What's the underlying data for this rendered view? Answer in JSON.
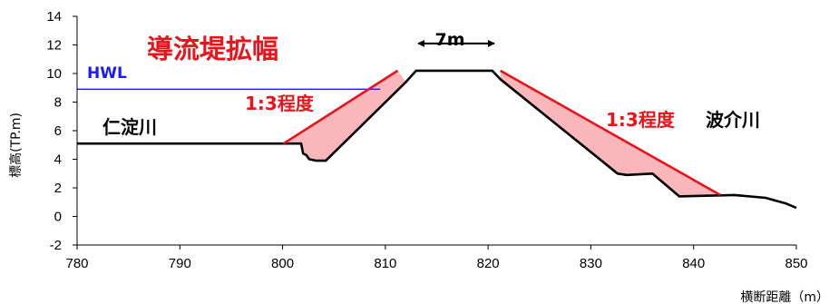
{
  "chart_data": {
    "type": "line",
    "title": "",
    "xlabel": "横断距離（m）",
    "ylabel": "標高(TP.m)",
    "xlim": [
      780,
      850
    ],
    "ylim": [
      -2,
      14
    ],
    "x_ticks": [
      780,
      790,
      800,
      810,
      820,
      830,
      840,
      850
    ],
    "y_ticks": [
      -2,
      0,
      2,
      4,
      6,
      8,
      10,
      12,
      14
    ],
    "grid": false,
    "series": [
      {
        "name": "",
        "color": "#000000",
        "points": [
          [
            780,
            5.1
          ],
          [
            801.8,
            5.1
          ],
          [
            802.0,
            4.4
          ],
          [
            802.3,
            4.3
          ],
          [
            802.6,
            4.0
          ],
          [
            803.3,
            3.9
          ],
          [
            804.2,
            3.9
          ],
          [
            812.0,
            9.4
          ],
          [
            813.0,
            10.2
          ],
          [
            820.4,
            10.2
          ],
          [
            821.2,
            9.6
          ],
          [
            832.6,
            3.0
          ],
          [
            833.5,
            2.9
          ],
          [
            836.0,
            3.0
          ],
          [
            838.6,
            1.4
          ],
          [
            844.0,
            1.5
          ],
          [
            847.0,
            1.3
          ],
          [
            849.0,
            0.9
          ],
          [
            850,
            0.6
          ]
        ]
      }
    ],
    "hwl": {
      "y": 8.9,
      "x_range": [
        780,
        809.5
      ],
      "color": "#1a1aff"
    },
    "widening_regions": [
      {
        "polygon": [
          [
            800.1,
            5.1
          ],
          [
            801.8,
            5.1
          ],
          [
            802.0,
            4.4
          ],
          [
            802.3,
            4.3
          ],
          [
            802.6,
            4.0
          ],
          [
            803.3,
            3.9
          ],
          [
            804.2,
            3.9
          ],
          [
            812.0,
            9.4
          ],
          [
            811.2,
            10.2
          ]
        ],
        "slope_line": [
          [
            800.1,
            5.1
          ],
          [
            811.2,
            10.2
          ]
        ]
      },
      {
        "polygon": [
          [
            821.2,
            10.2
          ],
          [
            821.2,
            9.6
          ],
          [
            832.6,
            3.0
          ],
          [
            833.5,
            2.9
          ],
          [
            836.0,
            3.0
          ],
          [
            838.6,
            1.4
          ],
          [
            842.6,
            1.5
          ]
        ],
        "slope_line": [
          [
            821.2,
            10.2
          ],
          [
            842.6,
            1.5
          ]
        ]
      }
    ],
    "dimension": {
      "label": "7m",
      "x_range": [
        813.2,
        820.6
      ],
      "y": 12.1
    },
    "annotations": {
      "title": "導流堤拡幅",
      "hwl_label": "HWL",
      "left_river": "仁淀川",
      "right_river": "波介川",
      "slope_left": "1:3程度",
      "slope_right": "1:3程度"
    },
    "colors": {
      "fill": "#f9b6bb",
      "slope": "#e8141b",
      "ground": "#000000"
    }
  }
}
